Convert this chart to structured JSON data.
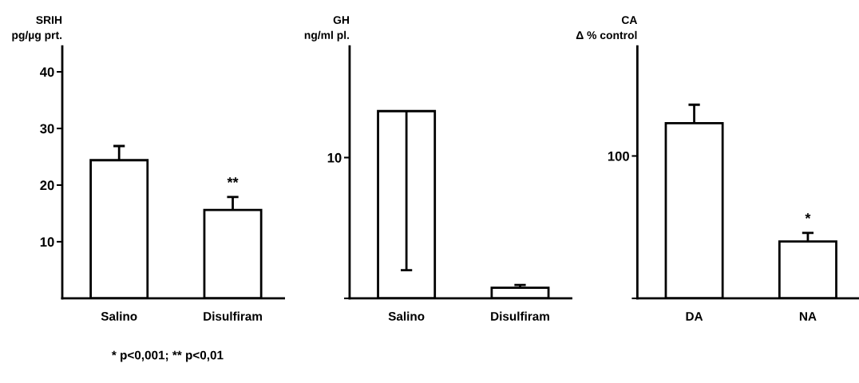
{
  "chart_data": [
    {
      "type": "bar",
      "ylabel": "SRIH\npg/µg prt.",
      "categories": [
        "Salino",
        "Disulfiram"
      ],
      "values": [
        24.4,
        15.6
      ],
      "errors": [
        [
          24.4,
          26.9
        ],
        [
          15.6,
          17.9
        ]
      ],
      "color": "#ffffff",
      "ylim": [
        0,
        44.5
      ],
      "yticks": [
        10,
        20,
        30,
        40
      ],
      "grid": false,
      "annotations": [
        {
          "text": "**",
          "x": "Disulfiram",
          "y": 17.9
        },
        "* p<0,001; ** p<0,01"
      ]
    },
    {
      "type": "bar",
      "ylabel": "GH\nng/ml pl.",
      "categories": [
        "Salino",
        "Disulfiram"
      ],
      "values": [
        13.3,
        0.75
      ],
      "errors": [
        [
          2.0,
          13.3
        ],
        [
          0.75,
          0.95
        ]
      ],
      "color": "#ffffff",
      "ylim": [
        0,
        17.9
      ],
      "yticks": [
        {
          "value": 0,
          "label": null
        },
        10
      ],
      "grid": false
    },
    {
      "type": "bar",
      "ylabel": "CA\nΔ % control",
      "categories": [
        "DA",
        "NA"
      ],
      "values": [
        123,
        40
      ],
      "errors": [
        [
          123,
          136
        ],
        [
          40,
          46
        ]
      ],
      "color": "#ffffff",
      "ylim": [
        0,
        177
      ],
      "yticks": [
        {
          "value": 0,
          "label": null
        },
        100
      ],
      "grid": false,
      "annotations": [
        {
          "text": "*",
          "x": "NA",
          "y": 46
        }
      ]
    }
  ]
}
